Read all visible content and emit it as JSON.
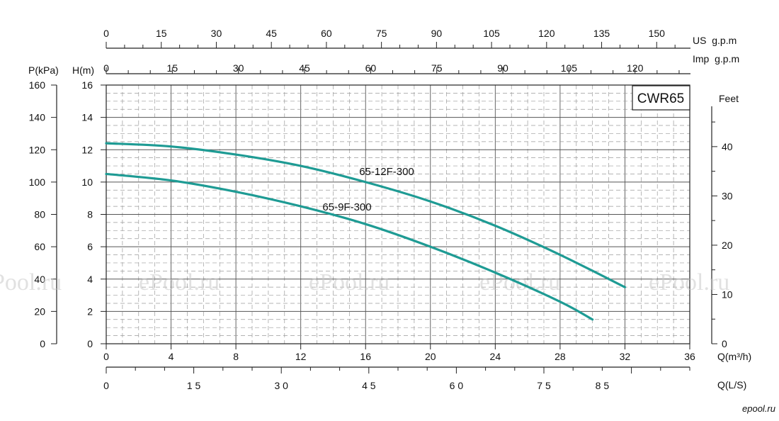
{
  "colors": {
    "curve": "#1e9b94",
    "axis": "#222222",
    "major_grid": "#555555",
    "minor_grid": "#9a9a9a",
    "watermark": "#c9c9c9",
    "logo": "#2aa6a0"
  },
  "chart_data": {
    "type": "line",
    "model_label": "CWR65",
    "x_primary": {
      "label": "Q(m³/h)",
      "range": [
        0,
        36
      ],
      "ticks": [
        0,
        4,
        8,
        12,
        16,
        20,
        24,
        28,
        32,
        36
      ]
    },
    "x_lps": {
      "label": "Q(L/S)",
      "tick_labels": [
        "0",
        "1 5",
        "3 0",
        "4 5",
        "6 0",
        "7 5",
        "8 5"
      ],
      "tick_values": [
        0,
        15,
        30,
        45,
        60,
        75,
        85
      ]
    },
    "x_us_gpm": {
      "label": "US  g.p.m",
      "ticks": [
        0,
        15,
        30,
        45,
        60,
        75,
        90,
        105,
        120,
        135,
        150
      ]
    },
    "x_imp_gpm": {
      "label": "Imp  g.p.m",
      "ticks": [
        0,
        15,
        30,
        45,
        60,
        75,
        90,
        105,
        120
      ]
    },
    "y_head": {
      "label": "H(m)",
      "range": [
        0,
        16
      ],
      "ticks": [
        0,
        2,
        4,
        6,
        8,
        10,
        12,
        14,
        16
      ]
    },
    "y_pressure": {
      "label": "P(kPa)",
      "ticks": [
        0,
        20,
        40,
        60,
        80,
        100,
        120,
        140,
        160
      ]
    },
    "y_feet": {
      "label": "Feet",
      "ticks": [
        0,
        10,
        20,
        30,
        40
      ]
    },
    "grid": true,
    "series": [
      {
        "name": "65-12F-300",
        "x": [
          0,
          4,
          8,
          12,
          16,
          20,
          24,
          28,
          32
        ],
        "y": [
          12.4,
          12.2,
          11.7,
          11.0,
          10.0,
          8.8,
          7.3,
          5.5,
          3.5
        ]
      },
      {
        "name": "65-9F-300",
        "x": [
          0,
          4,
          8,
          12,
          16,
          20,
          24,
          28,
          30
        ],
        "y": [
          10.5,
          10.1,
          9.4,
          8.5,
          7.4,
          6.0,
          4.4,
          2.6,
          1.5
        ]
      }
    ],
    "watermarks": [
      "Pool.ru",
      "ePool.ru",
      "ePool.ru",
      "ePool.ru",
      "ePool.ru"
    ],
    "site_logo": "epool.ru"
  }
}
